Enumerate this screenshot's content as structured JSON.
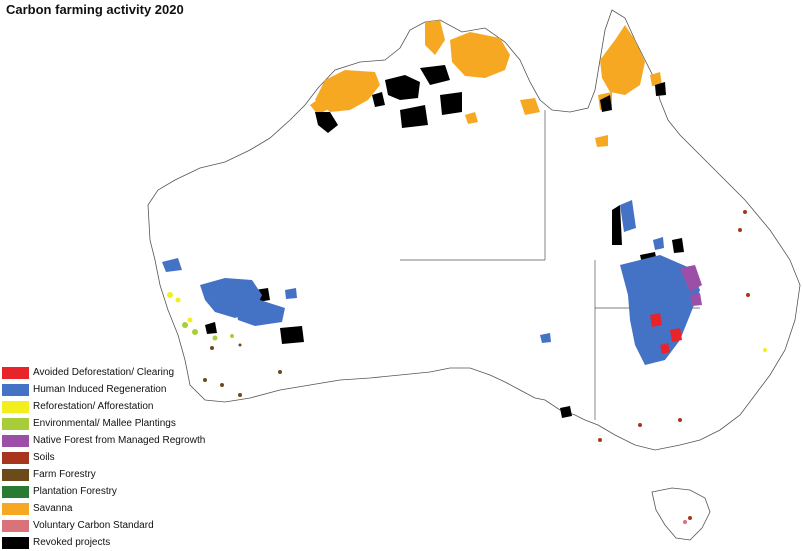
{
  "title": "Carbon farming activity 2020",
  "legend": [
    {
      "label": "Avoided Deforestation/ Clearing",
      "color": "#e8242a",
      "icon": "red-swatch"
    },
    {
      "label": "Human Induced Regeneration",
      "color": "#4472c4",
      "icon": "blue-swatch"
    },
    {
      "label": "Reforestation/ Afforestation",
      "color": "#f3ef1f",
      "icon": "yellow-swatch"
    },
    {
      "label": "Environmental/ Mallee Plantings",
      "color": "#a8cd3a",
      "icon": "light-green-swatch"
    },
    {
      "label": "Native Forest from Managed Regrowth",
      "color": "#9b4fa6",
      "icon": "purple-swatch"
    },
    {
      "label": "Soils",
      "color": "#a8361f",
      "icon": "rust-swatch"
    },
    {
      "label": "Farm Forestry",
      "color": "#6d4a1a",
      "icon": "brown-swatch"
    },
    {
      "label": "Plantation Forestry",
      "color": "#2a7a32",
      "icon": "dark-green-swatch"
    },
    {
      "label": "Savanna",
      "color": "#f7a823",
      "icon": "orange-swatch"
    },
    {
      "label": "Voluntary Carbon Standard",
      "color": "#d9727a",
      "icon": "pink-swatch"
    },
    {
      "label": "Revoked projects",
      "color": "#000000",
      "icon": "black-swatch"
    }
  ]
}
